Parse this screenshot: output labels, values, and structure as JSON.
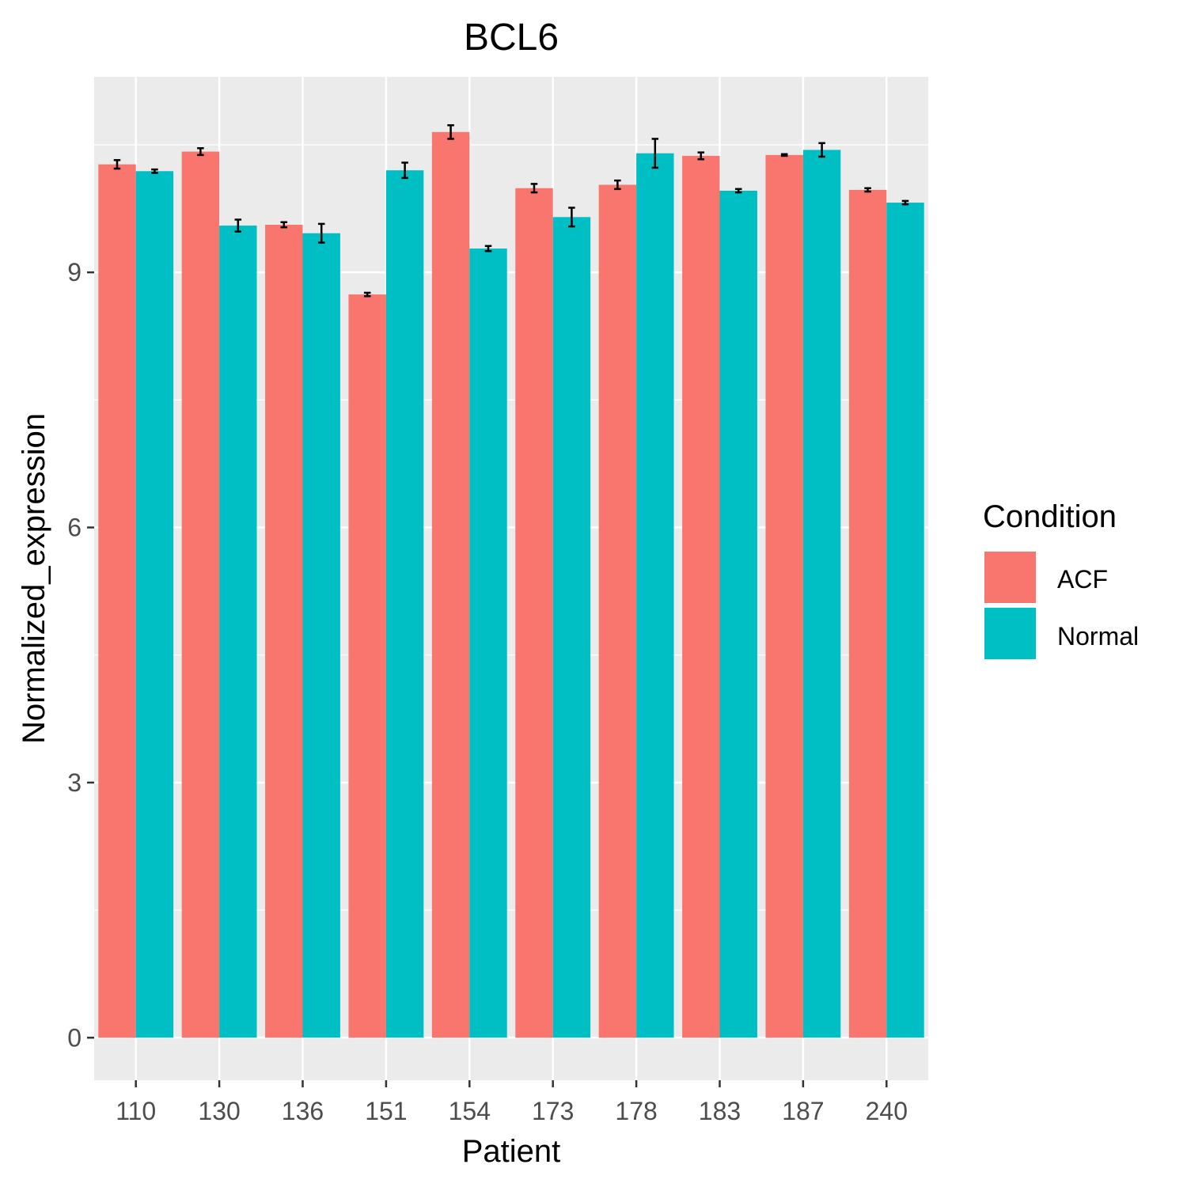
{
  "chart_data": {
    "type": "bar",
    "title": "BCL6",
    "xlabel": "Patient",
    "ylabel": "Normalized_expression",
    "categories": [
      "110",
      "130",
      "136",
      "151",
      "154",
      "173",
      "178",
      "183",
      "187",
      "240"
    ],
    "ylim": [
      -0.5,
      11.3
    ],
    "yticks": [
      0,
      3,
      6,
      9
    ],
    "yticklabels": [
      "0",
      "3",
      "6",
      "9"
    ],
    "grid": true,
    "legend": {
      "title": "Condition",
      "position": "right",
      "entries": [
        "ACF",
        "Normal"
      ]
    },
    "series": [
      {
        "name": "ACF",
        "color": "#F8766D",
        "values": [
          10.27,
          10.42,
          9.56,
          8.74,
          10.65,
          9.99,
          10.03,
          10.37,
          10.38,
          9.97
        ],
        "error": [
          0.05,
          0.04,
          0.03,
          0.02,
          0.08,
          0.05,
          0.05,
          0.04,
          0.01,
          0.02
        ]
      },
      {
        "name": "Normal",
        "color": "#00BFC4",
        "values": [
          10.19,
          9.55,
          9.46,
          10.2,
          9.28,
          9.65,
          10.4,
          9.96,
          10.44,
          9.82
        ],
        "error": [
          0.02,
          0.07,
          0.11,
          0.09,
          0.03,
          0.11,
          0.17,
          0.02,
          0.08,
          0.02
        ]
      }
    ]
  },
  "colors": {
    "panel_background": "#EBEBEB",
    "gridline": "#FFFFFF",
    "tick_text": "#4D4D4D",
    "error_bar": "#000000"
  }
}
